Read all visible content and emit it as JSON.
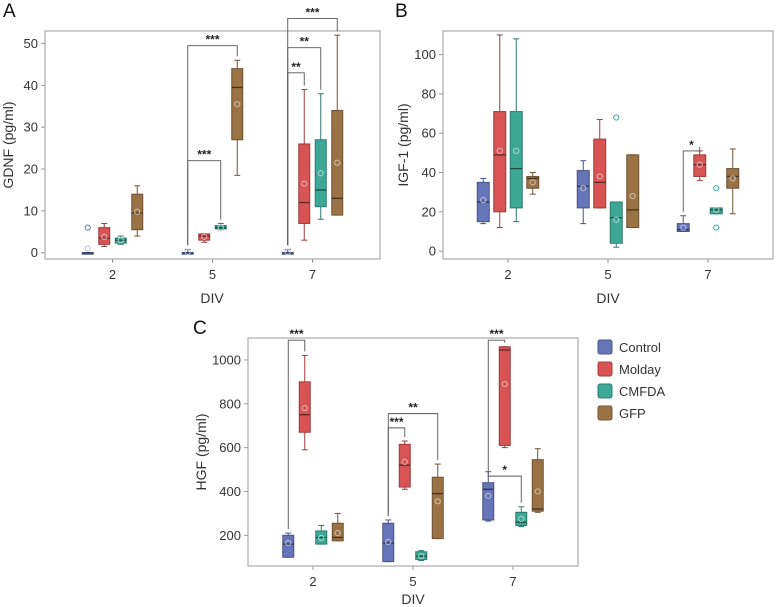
{
  "colors": {
    "Control": "#6675b8",
    "Molday": "#d85454",
    "CMFDA": "#3ea897",
    "GFP": "#9a7245"
  },
  "legend": {
    "items": [
      "Control",
      "Molday",
      "CMFDA",
      "GFP"
    ]
  },
  "chart_data": [
    {
      "panel": "A",
      "type": "box",
      "title": "",
      "xlabel": "DIV",
      "ylabel": "GDNF (pg/ml)",
      "ylim": [
        -1.5,
        53
      ],
      "yticks": [
        0,
        10,
        20,
        30,
        40,
        50
      ],
      "categories": [
        "2",
        "5",
        "7"
      ],
      "series": [
        {
          "name": "Control",
          "boxes": [
            {
              "min": 0,
              "q1": 0,
              "median": 0,
              "q3": 0,
              "max": 0,
              "mean": 1,
              "outliers": [
                6
              ]
            },
            {
              "min": 0,
              "q1": 0,
              "median": 0,
              "q3": 0,
              "max": 0.8,
              "mean": 0.2,
              "outliers": []
            },
            {
              "min": 0,
              "q1": 0,
              "median": 0,
              "q3": 0,
              "max": 0.8,
              "mean": 0.2,
              "outliers": []
            }
          ]
        },
        {
          "name": "Molday",
          "boxes": [
            {
              "min": 1.5,
              "q1": 2,
              "median": 3.5,
              "q3": 6,
              "max": 7,
              "mean": 3.8,
              "outliers": []
            },
            {
              "min": 2.5,
              "q1": 3,
              "median": 4,
              "q3": 4.5,
              "max": 4.5,
              "mean": 3.8,
              "outliers": []
            },
            {
              "min": 3,
              "q1": 7,
              "median": 12,
              "q3": 26,
              "max": 39,
              "mean": 16.5,
              "outliers": []
            }
          ]
        },
        {
          "name": "CMFDA",
          "boxes": [
            {
              "min": 2,
              "q1": 2.3,
              "median": 3,
              "q3": 3.5,
              "max": 4,
              "mean": 3,
              "outliers": []
            },
            {
              "min": 5.5,
              "q1": 5.7,
              "median": 6,
              "q3": 6.5,
              "max": 7,
              "mean": 6,
              "outliers": []
            },
            {
              "min": 8,
              "q1": 11,
              "median": 15,
              "q3": 27,
              "max": 38,
              "mean": 19,
              "outliers": []
            }
          ]
        },
        {
          "name": "GFP",
          "boxes": [
            {
              "min": 4,
              "q1": 5.5,
              "median": 9.5,
              "q3": 14,
              "max": 16,
              "mean": 9.8,
              "outliers": []
            },
            {
              "min": 18.5,
              "q1": 27,
              "median": 39.5,
              "q3": 44,
              "max": 46,
              "mean": 35.5,
              "outliers": []
            },
            {
              "min": 9,
              "q1": 9,
              "median": 13,
              "q3": 34,
              "max": 52,
              "mean": 21.5,
              "outliers": []
            }
          ]
        }
      ],
      "annotations": [
        {
          "text": "***",
          "cat": 1,
          "from": "Control",
          "to": "GFP",
          "level": 49.5
        },
        {
          "text": "***",
          "cat": 1,
          "from": "Control",
          "to": "CMFDA",
          "level": 22
        },
        {
          "text": "***",
          "cat": 2,
          "from": "Control",
          "to": "GFP",
          "level": 56
        },
        {
          "text": "**",
          "cat": 2,
          "from": "Control",
          "to": "CMFDA",
          "level": 49
        },
        {
          "text": "**",
          "cat": 2,
          "from": "Control",
          "to": "Molday",
          "level": 43
        }
      ]
    },
    {
      "panel": "B",
      "type": "box",
      "title": "",
      "xlabel": "DIV",
      "ylabel": "IGF-1 (pg/ml)",
      "ylim": [
        -4,
        112
      ],
      "yticks": [
        0,
        20,
        40,
        60,
        80,
        100
      ],
      "categories": [
        "2",
        "5",
        "7"
      ],
      "series": [
        {
          "name": "Control",
          "boxes": [
            {
              "min": 14,
              "q1": 15,
              "median": 25,
              "q3": 35,
              "max": 37,
              "mean": 26,
              "outliers": []
            },
            {
              "min": 14,
              "q1": 22,
              "median": 33,
              "q3": 41,
              "max": 46,
              "mean": 32,
              "outliers": []
            },
            {
              "min": 10,
              "q1": 10,
              "median": 11,
              "q3": 14,
              "max": 18,
              "mean": 12,
              "outliers": []
            }
          ]
        },
        {
          "name": "Molday",
          "boxes": [
            {
              "min": 12,
              "q1": 20,
              "median": 49,
              "q3": 71,
              "max": 110,
              "mean": 51,
              "outliers": []
            },
            {
              "min": 22,
              "q1": 22,
              "median": 35,
              "q3": 57,
              "max": 67,
              "mean": 38,
              "outliers": []
            },
            {
              "min": 36,
              "q1": 38,
              "median": 44,
              "q3": 49,
              "max": 51,
              "mean": 44,
              "outliers": []
            }
          ]
        },
        {
          "name": "CMFDA",
          "boxes": [
            {
              "min": 15,
              "q1": 22,
              "median": 42,
              "q3": 71,
              "max": 108,
              "mean": 51,
              "outliers": []
            },
            {
              "min": 2,
              "q1": 4,
              "median": 17,
              "q3": 25,
              "max": 25,
              "mean": 16,
              "outliers": [
                68
              ]
            },
            {
              "min": 19,
              "q1": 19,
              "median": 21,
              "q3": 22,
              "max": 22,
              "mean": 21,
              "outliers": [
                12,
                32
              ]
            }
          ]
        },
        {
          "name": "GFP",
          "boxes": [
            {
              "min": 29,
              "q1": 32,
              "median": 37,
              "q3": 38,
              "max": 40,
              "mean": 35,
              "outliers": []
            },
            {
              "min": 12,
              "q1": 12,
              "median": 21,
              "q3": 49,
              "max": 49,
              "mean": 28,
              "outliers": []
            },
            {
              "min": 19,
              "q1": 32,
              "median": 38,
              "q3": 42,
              "max": 52,
              "mean": 37,
              "outliers": []
            }
          ]
        }
      ],
      "annotations": [
        {
          "text": "*",
          "cat": 2,
          "from": "Control",
          "to": "Molday",
          "level": 51
        }
      ]
    },
    {
      "panel": "C",
      "type": "box",
      "title": "",
      "xlabel": "DIV",
      "ylabel": "HGF (pg/ml)",
      "ylim": [
        60,
        1100
      ],
      "yticks": [
        200,
        400,
        600,
        800,
        1000
      ],
      "categories": [
        "2",
        "5",
        "7"
      ],
      "series": [
        {
          "name": "Control",
          "boxes": [
            {
              "min": 100,
              "q1": 100,
              "median": 160,
              "q3": 200,
              "max": 210,
              "mean": 165,
              "outliers": []
            },
            {
              "min": 80,
              "q1": 80,
              "median": 165,
              "q3": 255,
              "max": 270,
              "mean": 170,
              "outliers": []
            },
            {
              "min": 265,
              "q1": 270,
              "median": 410,
              "q3": 440,
              "max": 490,
              "mean": 380,
              "outliers": []
            }
          ]
        },
        {
          "name": "Molday",
          "boxes": [
            {
              "min": 590,
              "q1": 670,
              "median": 750,
              "q3": 900,
              "max": 1020,
              "mean": 780,
              "outliers": []
            },
            {
              "min": 410,
              "q1": 420,
              "median": 520,
              "q3": 615,
              "max": 630,
              "mean": 535,
              "outliers": []
            },
            {
              "min": 600,
              "q1": 610,
              "median": 1045,
              "q3": 1060,
              "max": 1060,
              "mean": 890,
              "outliers": []
            }
          ]
        },
        {
          "name": "CMFDA",
          "boxes": [
            {
              "min": 160,
              "q1": 160,
              "median": 190,
              "q3": 220,
              "max": 245,
              "mean": 188,
              "outliers": []
            },
            {
              "min": 85,
              "q1": 90,
              "median": 105,
              "q3": 125,
              "max": 130,
              "mean": 105,
              "outliers": []
            },
            {
              "min": 240,
              "q1": 245,
              "median": 260,
              "q3": 305,
              "max": 330,
              "mean": 275,
              "outliers": []
            }
          ]
        },
        {
          "name": "GFP",
          "boxes": [
            {
              "min": 175,
              "q1": 175,
              "median": 190,
              "q3": 255,
              "max": 300,
              "mean": 210,
              "outliers": []
            },
            {
              "min": 185,
              "q1": 185,
              "median": 390,
              "q3": 465,
              "max": 525,
              "mean": 355,
              "outliers": []
            },
            {
              "min": 305,
              "q1": 310,
              "median": 320,
              "q3": 545,
              "max": 595,
              "mean": 400,
              "outliers": []
            }
          ]
        }
      ],
      "annotations": [
        {
          "text": "***",
          "cat": 0,
          "from": "Control",
          "to": "Molday",
          "level": 1090
        },
        {
          "text": "***",
          "cat": 1,
          "from": "Control",
          "to": "Molday",
          "level": 690
        },
        {
          "text": "**",
          "cat": 1,
          "from": "Control",
          "to": "GFP",
          "level": 755
        },
        {
          "text": "***",
          "cat": 2,
          "from": "Control",
          "to": "Molday",
          "level": 1090
        },
        {
          "text": "*",
          "cat": 2,
          "from": "Control",
          "to": "CMFDA",
          "level": 470
        }
      ]
    }
  ]
}
